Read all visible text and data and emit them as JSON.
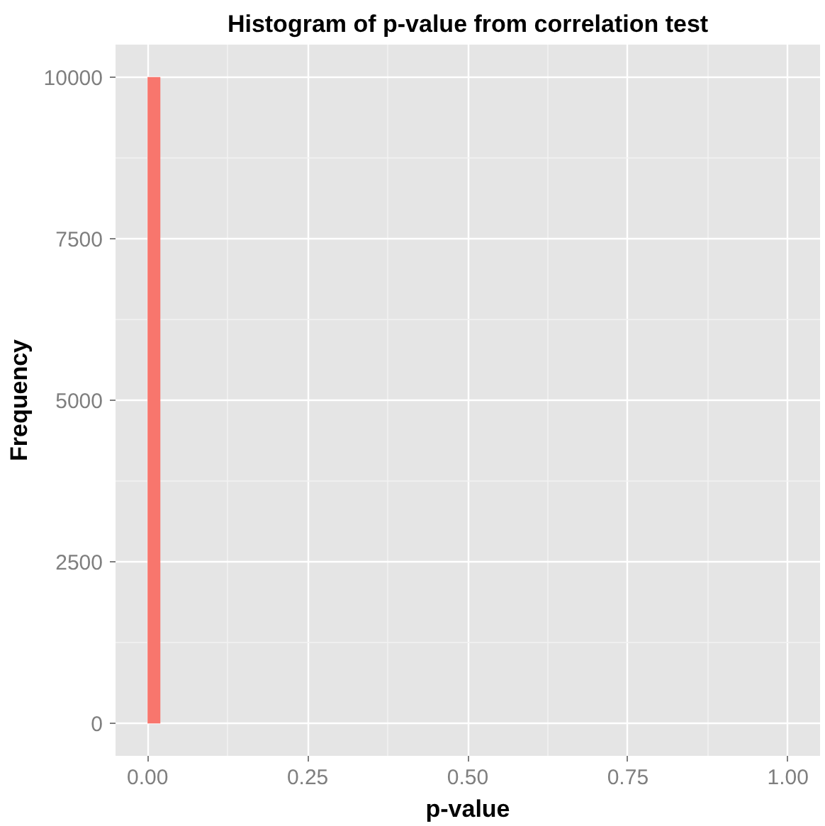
{
  "chart_data": {
    "type": "histogram",
    "title": "Histogram of p-value from correlation test",
    "xlabel": "p-value",
    "ylabel": "Frequency",
    "bins": [
      0,
      0.02
    ],
    "values": [
      10000
    ],
    "color": "#f8766d",
    "xlim": [
      -0.05,
      1.05
    ],
    "ylim": [
      -500,
      10500
    ],
    "xticks": [
      {
        "value": 0,
        "label": "0.00"
      },
      0.25,
      {
        "value": 0.5,
        "label": "0.50"
      },
      0.75,
      {
        "value": 1,
        "label": "1.00"
      }
    ],
    "yticks": [
      0,
      2500,
      5000,
      7500,
      10000
    ],
    "grid": true
  }
}
